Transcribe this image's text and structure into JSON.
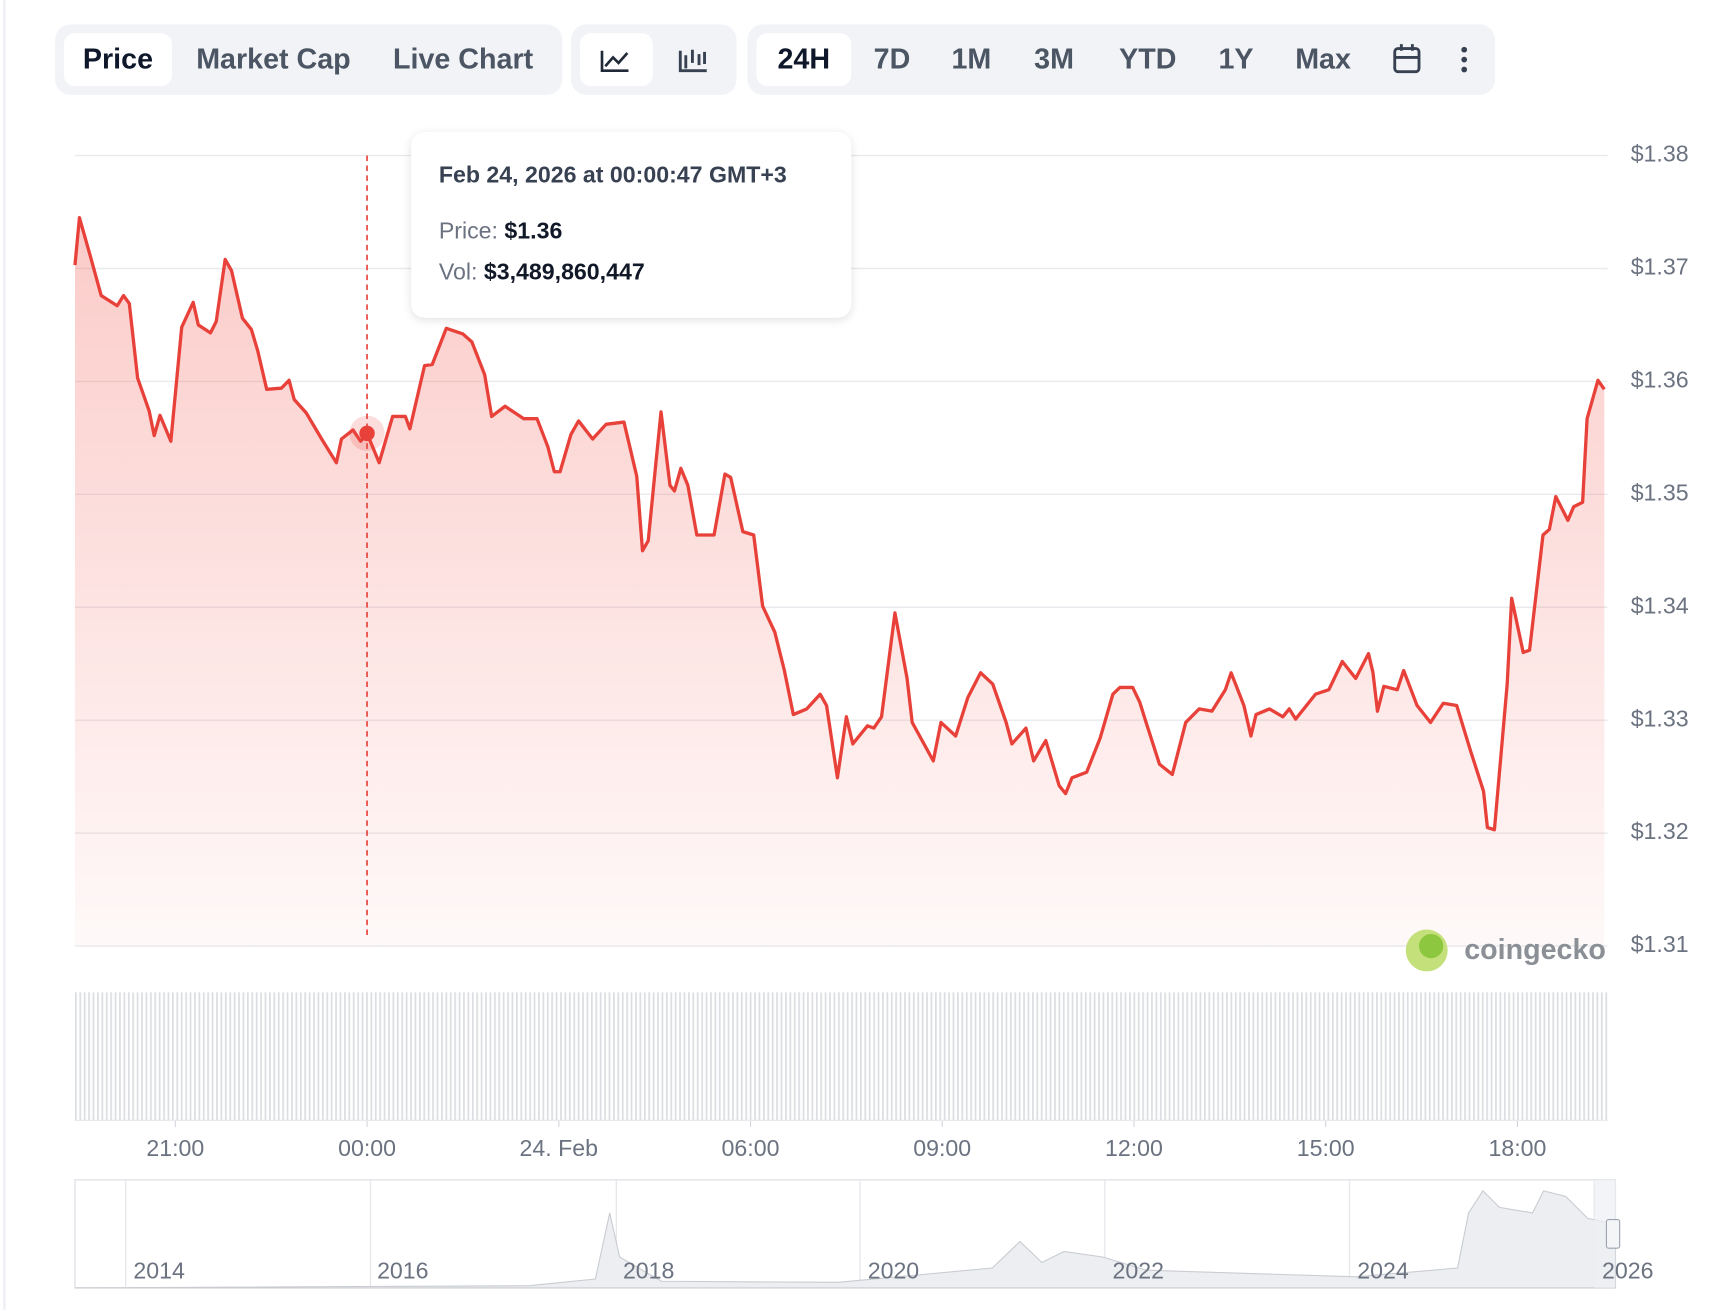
{
  "toolbar": {
    "views": [
      "Price",
      "Market Cap",
      "Live Chart"
    ],
    "ranges": [
      "24H",
      "7D",
      "1M",
      "3M",
      "YTD",
      "1Y",
      "Max"
    ]
  },
  "tooltip": {
    "date": "Feb 24, 2026 at 00:00:47 GMT+3",
    "price_label": "Price:",
    "price": "$1.36",
    "vol_label": "Vol:",
    "vol": "$3,489,860,447"
  },
  "watermark": "coingecko",
  "navigator": {
    "labels": [
      "2014",
      "2016",
      "2018",
      "2020",
      "2022",
      "2024",
      "2026"
    ]
  },
  "chart_data": {
    "type": "line",
    "x": [
      19.43,
      19.5,
      19.67,
      19.84,
      20.09,
      20.19,
      20.28,
      20.41,
      20.59,
      20.67,
      20.76,
      20.93,
      21.1,
      21.28,
      21.36,
      21.55,
      21.64,
      21.78,
      21.88,
      22.05,
      22.19,
      22.29,
      22.43,
      22.66,
      22.78,
      22.86,
      23.05,
      23.29,
      23.52,
      23.6,
      23.78,
      23.9,
      24,
      24.19,
      24.4,
      24.6,
      24.67,
      24.9,
      25.02,
      25.24,
      25.5,
      25.64,
      25.84,
      25.95,
      26.16,
      26.45,
      26.66,
      26.83,
      26.93,
      27.02,
      27.19,
      27.31,
      27.53,
      27.74,
      28.02,
      28.22,
      28.31,
      28.4,
      28.52,
      28.6,
      28.74,
      28.81,
      28.91,
      29.02,
      29.16,
      29.43,
      29.6,
      29.69,
      29.88,
      30.05,
      30.19,
      30.38,
      30.53,
      30.67,
      30.88,
      31.09,
      31.19,
      31.36,
      31.5,
      31.6,
      31.83,
      31.93,
      32.05,
      32.26,
      32.45,
      32.53,
      32.86,
      32.98,
      33.21,
      33.4,
      33.6,
      33.79,
      34,
      34.09,
      34.31,
      34.43,
      34.62,
      34.83,
      34.93,
      35.03,
      35.26,
      35.47,
      35.67,
      35.78,
      35.98,
      36.09,
      36.19,
      36.4,
      36.6,
      36.81,
      37.02,
      37.22,
      37.43,
      37.52,
      37.72,
      37.83,
      37.91,
      38.12,
      38.33,
      38.43,
      38.53,
      38.84,
      39.05,
      39.26,
      39.47,
      39.67,
      39.74,
      39.81,
      39.91,
      40.12,
      40.22,
      40.43,
      40.64,
      40.84,
      41.05,
      41.26,
      41.47,
      41.53,
      41.64,
      41.84,
      41.91,
      42.09,
      42.19,
      42.4,
      42.5,
      42.6,
      42.79,
      42.88,
      43.02,
      43.09,
      43.26,
      43.36
    ],
    "series": [
      {
        "color": "#e8413a",
        "values": [
          1.3703,
          1.3745,
          1.3711,
          1.3676,
          1.3667,
          1.3676,
          1.3669,
          1.3603,
          1.3574,
          1.3552,
          1.357,
          1.3547,
          1.3648,
          1.367,
          1.365,
          1.3643,
          1.3653,
          1.3708,
          1.3698,
          1.3656,
          1.3646,
          1.3627,
          1.3593,
          1.3594,
          1.3601,
          1.3584,
          1.3572,
          1.3549,
          1.3528,
          1.3549,
          1.3557,
          1.3547,
          1.3554,
          1.3528,
          1.3569,
          1.3569,
          1.3558,
          1.3614,
          1.3615,
          1.3647,
          1.3642,
          1.3635,
          1.3606,
          1.3569,
          1.3578,
          1.3567,
          1.3567,
          1.3542,
          1.352,
          1.352,
          1.3553,
          1.3565,
          1.3549,
          1.3562,
          1.3564,
          1.3516,
          1.345,
          1.3459,
          1.3528,
          1.3573,
          1.3508,
          1.3503,
          1.3523,
          1.3508,
          1.3464,
          1.3464,
          1.3518,
          1.3515,
          1.3467,
          1.3464,
          1.3401,
          1.3378,
          1.3344,
          1.3305,
          1.331,
          1.3323,
          1.3313,
          1.3249,
          1.3303,
          1.3279,
          1.3295,
          1.3293,
          1.3303,
          1.3395,
          1.3337,
          1.3298,
          1.3264,
          1.3298,
          1.3286,
          1.332,
          1.3342,
          1.3332,
          1.3298,
          1.3279,
          1.3293,
          1.3264,
          1.3282,
          1.3242,
          1.3235,
          1.3249,
          1.3254,
          1.3284,
          1.3323,
          1.3329,
          1.3329,
          1.3316,
          1.3298,
          1.3261,
          1.3252,
          1.3298,
          1.331,
          1.3308,
          1.3327,
          1.3342,
          1.3313,
          1.3286,
          1.3305,
          1.331,
          1.3303,
          1.331,
          1.3301,
          1.3323,
          1.3327,
          1.3352,
          1.3337,
          1.3359,
          1.3342,
          1.3308,
          1.333,
          1.3327,
          1.3344,
          1.3313,
          1.3298,
          1.3315,
          1.3313,
          1.3274,
          1.3237,
          1.3205,
          1.3203,
          1.3332,
          1.3408,
          1.336,
          1.3362,
          1.3464,
          1.3469,
          1.3498,
          1.3477,
          1.3489,
          1.3493,
          1.3567,
          1.3601,
          1.3593
        ]
      }
    ],
    "xlim": [
      19.43,
      43.41
    ],
    "xticks": [
      {
        "value": 21,
        "label": "21:00"
      },
      {
        "value": 24,
        "label": "00:00"
      },
      {
        "value": 27,
        "label": "24. Feb"
      },
      {
        "value": 30,
        "label": "06:00"
      },
      {
        "value": 33,
        "label": "09:00"
      },
      {
        "value": 36,
        "label": "12:00"
      },
      {
        "value": 39,
        "label": "15:00"
      },
      {
        "value": 42,
        "label": "18:00"
      }
    ],
    "ylim": [
      1.31,
      1.38
    ],
    "yticks": [
      {
        "value": 1.31,
        "label": "$1.31"
      },
      {
        "value": 1.32,
        "label": "$1.32"
      },
      {
        "value": 1.33,
        "label": "$1.33"
      },
      {
        "value": 1.34,
        "label": "$1.34"
      },
      {
        "value": 1.35,
        "label": "$1.35"
      },
      {
        "value": 1.36,
        "label": "$1.36"
      },
      {
        "value": 1.37,
        "label": "$1.37"
      },
      {
        "value": 1.38,
        "label": "$1.38"
      }
    ],
    "grid": true
  }
}
